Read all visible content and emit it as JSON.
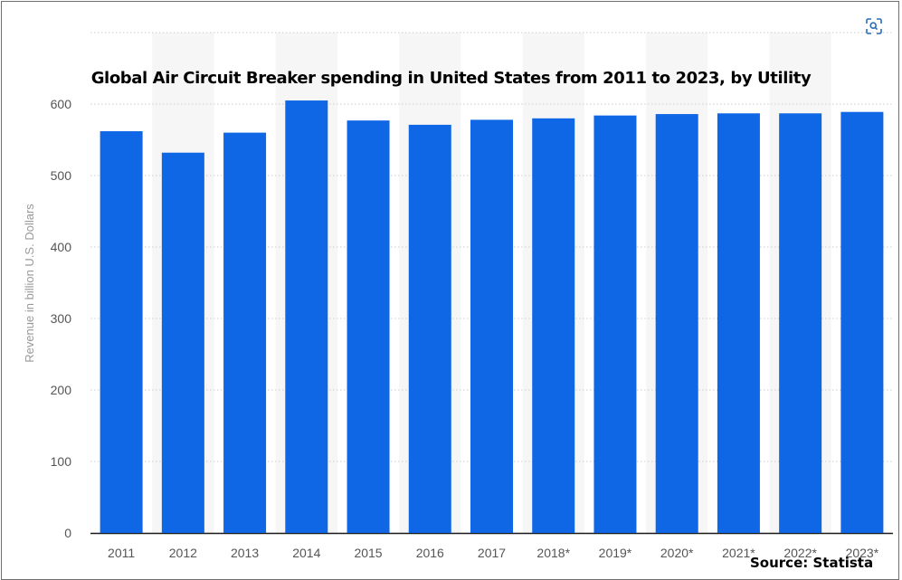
{
  "chart_data": {
    "type": "bar",
    "title": "Global Air Circuit Breaker spending in United States from 2011 to 2023, by Utility",
    "xlabel": "",
    "ylabel": "Revenue in billion U.S. Dollars",
    "categories": [
      "2011",
      "2012",
      "2013",
      "2014",
      "2015",
      "2016",
      "2017",
      "2018*",
      "2019*",
      "2020*",
      "2021*",
      "2022*",
      "2023*"
    ],
    "values": [
      562,
      532,
      560,
      605,
      577,
      571,
      578,
      580,
      584,
      586,
      587,
      587,
      589
    ],
    "ylim": [
      0,
      700
    ],
    "yticks": [
      0,
      100,
      200,
      300,
      400,
      500,
      600
    ],
    "grid": true,
    "bar_color": "#0f67e6",
    "source": "Source: Statista"
  },
  "toolbar": {
    "lens_icon": "visual-search-icon"
  }
}
